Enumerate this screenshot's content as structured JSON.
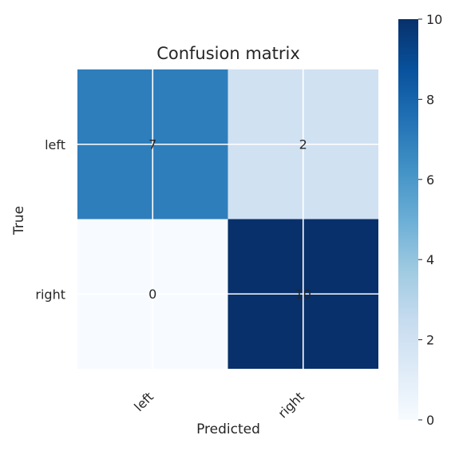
{
  "chart_data": {
    "type": "heatmap",
    "title": "Confusion matrix",
    "xlabel": "Predicted",
    "ylabel": "True",
    "x_categories": [
      "left",
      "right"
    ],
    "y_categories": [
      "left",
      "right"
    ],
    "values": [
      [
        7,
        2
      ],
      [
        0,
        10
      ]
    ],
    "colorbar": {
      "min": 0,
      "max": 10,
      "ticks": [
        0,
        2,
        4,
        6,
        8,
        10
      ]
    },
    "colorscale": "Blues",
    "grid": true
  }
}
